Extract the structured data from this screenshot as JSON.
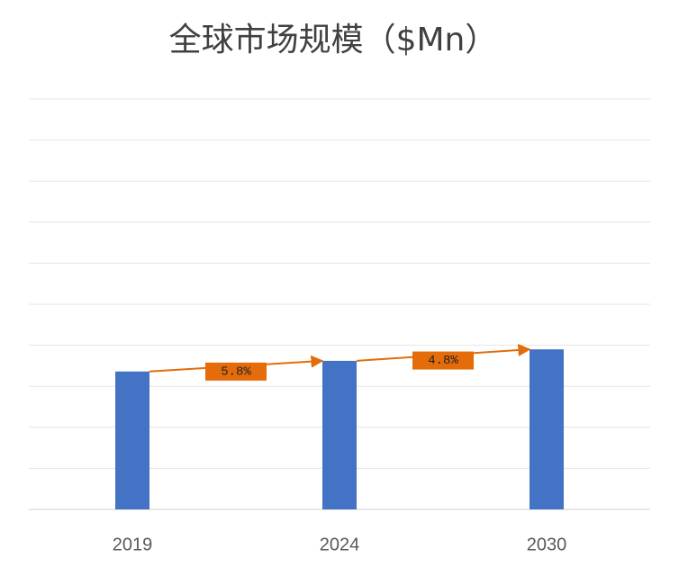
{
  "chart_data": {
    "type": "bar",
    "title": "全球市场规模（$Mn）",
    "categories": [
      "2019",
      "2024",
      "2030"
    ],
    "values": [
      3.36,
      3.62,
      3.9
    ],
    "color": "#4472c4",
    "ylim": [
      0,
      10
    ],
    "yticks": [
      0,
      1,
      2,
      3,
      4,
      5,
      6,
      7,
      8,
      9,
      10
    ],
    "grid": true,
    "annotations": [
      "5.8%",
      "4.8%"
    ],
    "annotation_color": "#e46c0a"
  }
}
